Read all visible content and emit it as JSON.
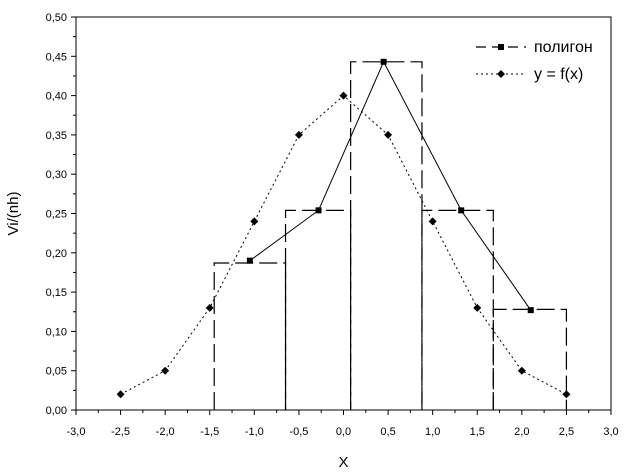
{
  "chart_data": {
    "type": "line",
    "xlabel": "X",
    "ylabel": "Vi/(nh)",
    "xlim": [
      -3.0,
      3.0
    ],
    "ylim": [
      0.0,
      0.5
    ],
    "x_ticks": [
      -3.0,
      -2.5,
      -2.0,
      -1.5,
      -1.0,
      -0.5,
      0.0,
      0.5,
      1.0,
      1.5,
      2.0,
      2.5,
      3.0
    ],
    "x_tick_labels": [
      "-3,0",
      "-2,5",
      "-2,0",
      "-1,5",
      "-1,0",
      "-0,5",
      "0,0",
      "0,5",
      "1,0",
      "1,5",
      "2,0",
      "2,5",
      "3,0"
    ],
    "y_ticks": [
      0.0,
      0.05,
      0.1,
      0.15,
      0.2,
      0.25,
      0.3,
      0.35,
      0.4,
      0.45,
      0.5
    ],
    "y_tick_labels": [
      "0,00",
      "0,05",
      "0,10",
      "0,15",
      "0,20",
      "0,25",
      "0,30",
      "0,35",
      "0,40",
      "0,45",
      "0,50"
    ],
    "grid": false,
    "legend_position": "top-right",
    "histogram": {
      "edges": [
        -1.45,
        -0.65,
        0.08,
        0.88,
        1.68,
        2.5
      ],
      "heights": [
        0.187,
        0.254,
        0.443,
        0.254,
        0.128
      ]
    },
    "series": [
      {
        "name": "полигон",
        "style": "solid-square",
        "x": [
          -1.05,
          -0.28,
          0.45,
          1.32,
          2.1
        ],
        "y": [
          0.19,
          0.254,
          0.443,
          0.254,
          0.127
        ]
      },
      {
        "name": "y = f(x)",
        "style": "dotted-diamond",
        "x": [
          -2.5,
          -2.0,
          -1.5,
          -1.0,
          -0.5,
          0.0,
          0.5,
          1.0,
          1.5,
          2.0,
          2.5
        ],
        "y": [
          0.02,
          0.05,
          0.13,
          0.24,
          0.35,
          0.4,
          0.35,
          0.24,
          0.13,
          0.05,
          0.02
        ]
      }
    ]
  }
}
